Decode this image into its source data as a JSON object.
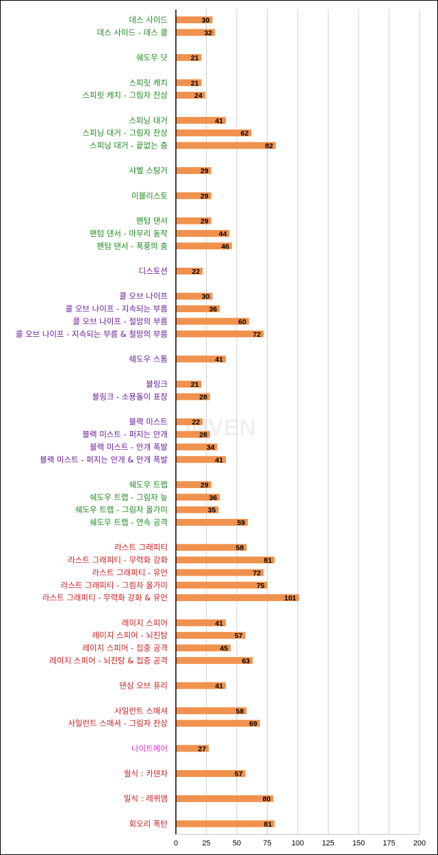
{
  "chart_data": {
    "type": "bar",
    "orientation": "horizontal",
    "xlim": [
      0,
      200
    ],
    "x_ticks": [
      "0",
      "25",
      "50",
      "75",
      "100",
      "125",
      "150",
      "175",
      "200"
    ],
    "x_tick_values": [
      0,
      25,
      50,
      75,
      100,
      125,
      150,
      175,
      200
    ],
    "bar_color": "#f0924e",
    "grid": true,
    "watermark": "INVEN",
    "groups": [
      {
        "color": "#1a8a1a",
        "items": [
          {
            "label": "데스 사이드",
            "value": 30
          },
          {
            "label": "데스 사이드 - 데스 콜",
            "value": 32
          }
        ]
      },
      {
        "color": "#1a8a1a",
        "items": [
          {
            "label": "쉐도우 닷",
            "value": 21
          }
        ]
      },
      {
        "color": "#1a8a1a",
        "items": [
          {
            "label": "스피릿 캐치",
            "value": 21
          },
          {
            "label": "스피릿 캐치 - 그림자 잔상",
            "value": 24
          }
        ]
      },
      {
        "color": "#1a8a1a",
        "items": [
          {
            "label": "스피닝 대거",
            "value": 41
          },
          {
            "label": "스피닝 대거 - 그림자 잔상",
            "value": 62
          },
          {
            "label": "스피닝 대거 - 끝없는 춤",
            "value": 82
          }
        ]
      },
      {
        "color": "#1a8a1a",
        "items": [
          {
            "label": "샤벨 스팅거",
            "value": 29
          }
        ]
      },
      {
        "color": "#1a8a1a",
        "items": [
          {
            "label": "이블리스토",
            "value": 29
          }
        ]
      },
      {
        "color": "#1a8a1a",
        "items": [
          {
            "label": "팬텀 댄서",
            "value": 29
          },
          {
            "label": "팬텀 댄서 - 마무리 동작",
            "value": 44
          },
          {
            "label": "팬텀 댄서 - 폭풍의 춤",
            "value": 46
          }
        ]
      },
      {
        "color": "#6a1a9a",
        "items": [
          {
            "label": "디스토션",
            "value": 22
          }
        ]
      },
      {
        "color": "#6a1a9a",
        "items": [
          {
            "label": "콜 오브 나이프",
            "value": 30
          },
          {
            "label": "콜 오브 나이프 - 지속되는 부름",
            "value": 36
          },
          {
            "label": "콜 오브 나이프 - 절망의 부름",
            "value": 60
          },
          {
            "label": "콜 오브 나이프 - 지속되는 부름 & 절망의 부름",
            "value": 72
          }
        ]
      },
      {
        "color": "#6a1a9a",
        "items": [
          {
            "label": "쉐도우 스톰",
            "value": 41
          }
        ]
      },
      {
        "color": "#6a1a9a",
        "items": [
          {
            "label": "블링크",
            "value": 21
          },
          {
            "label": "블링크 - 소용돌이 표창",
            "value": 28
          }
        ]
      },
      {
        "color": "#6a1a9a",
        "items": [
          {
            "label": "블랙 미스트",
            "value": 22
          },
          {
            "label": "블랙 미스트 - 퍼지는 안개",
            "value": 28
          },
          {
            "label": "블랙 미스트 - 안개 폭발",
            "value": 34
          },
          {
            "label": "블랙 미스트 - 퍼지는 안개 & 안개 폭발",
            "value": 41
          }
        ]
      },
      {
        "color": "#1a8a1a",
        "items": [
          {
            "label": "쉐도우 트랩",
            "value": 29
          },
          {
            "label": "쉐도우 트랩 - 그림자 늪",
            "value": 36
          },
          {
            "label": "쉐도우 트랩 - 그림자 올가미",
            "value": 35
          },
          {
            "label": "쉐도우 트랩 - 연속 공격",
            "value": 59
          }
        ]
      },
      {
        "color": "#cc1a1a",
        "items": [
          {
            "label": "라스트 그래피티",
            "value": 58
          },
          {
            "label": "라스트 그래피티 - 무력화 강화",
            "value": 81
          },
          {
            "label": "라스트 그래피티 - 유언",
            "value": 72
          },
          {
            "label": "라스트 그래피티 - 그림자 올가미",
            "value": 75
          },
          {
            "label": "라스트 그래피티 - 무력화 강화 & 유언",
            "value": 101
          }
        ]
      },
      {
        "color": "#cc1a1a",
        "items": [
          {
            "label": "레이지 스피어",
            "value": 41
          },
          {
            "label": "레이지 스피어 - 뇌진탕",
            "value": 57
          },
          {
            "label": "레이지 스피어 - 집중 공격",
            "value": 45
          },
          {
            "label": "레이지 스피어 - 뇌진탕 & 집중 공격",
            "value": 63
          }
        ]
      },
      {
        "color": "#cc1a1a",
        "items": [
          {
            "label": "댄싱 오브 퓨리",
            "value": 41
          }
        ]
      },
      {
        "color": "#cc1a1a",
        "items": [
          {
            "label": "사일런트 스매셔",
            "value": 58
          },
          {
            "label": "사일런트 스매셔 - 그림자 잔상",
            "value": 69
          }
        ]
      },
      {
        "color": "#d633c7",
        "items": [
          {
            "label": "나이트메어",
            "value": 27
          }
        ]
      },
      {
        "color": "#cc1a1a",
        "items": [
          {
            "label": "월식 : 카덴차",
            "value": 57
          }
        ]
      },
      {
        "color": "#cc1a1a",
        "items": [
          {
            "label": "일식 : 레퀴엠",
            "value": 80
          }
        ]
      },
      {
        "color": "#cc1a1a",
        "items": [
          {
            "label": "회오리 폭탄",
            "value": 81
          }
        ]
      }
    ]
  }
}
